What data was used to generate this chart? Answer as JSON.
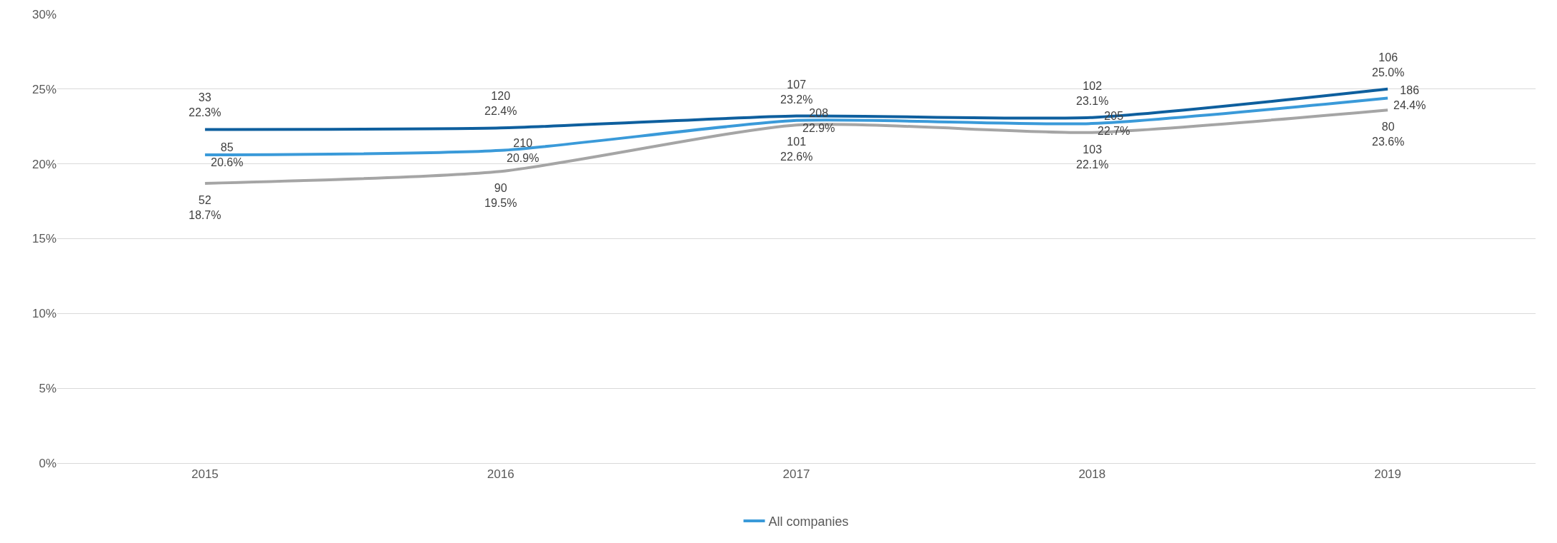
{
  "chart_data": {
    "type": "line",
    "categories": [
      "2015",
      "2016",
      "2017",
      "2018",
      "2019"
    ],
    "series": [
      {
        "name": "All companies",
        "color": "#3a9ad9",
        "values": [
          20.6,
          20.9,
          22.9,
          22.7,
          24.4
        ],
        "value_labels": [
          "85\n20.6%",
          "210\n20.9%",
          "208\n22.9%",
          "205\n22.7%",
          "186\n24.4%"
        ]
      },
      {
        "color": "#0e5f9e",
        "values": [
          22.3,
          22.4,
          23.2,
          23.1,
          25.0
        ],
        "value_labels": [
          "33\n22.3%",
          "120\n22.4%",
          "107\n23.2%",
          "102\n23.1%",
          "106\n25.0%"
        ]
      },
      {
        "color": "#a5a5a5",
        "values": [
          18.7,
          19.5,
          22.6,
          22.1,
          23.6
        ],
        "value_labels": [
          "52\n18.7%",
          "90\n19.5%",
          "101\n22.6%",
          "103\n22.1%",
          "80\n23.6%"
        ]
      }
    ],
    "ylim": [
      0,
      30
    ],
    "yticks": [
      {
        "value": 0,
        "label": "0%"
      },
      {
        "value": 5,
        "label": "5%"
      },
      {
        "value": 10,
        "label": "10%"
      },
      {
        "value": 15,
        "label": "15%"
      },
      {
        "value": 20,
        "label": "20%"
      },
      {
        "value": 25,
        "label": "25%"
      },
      {
        "value": 30,
        "label": "30%"
      }
    ],
    "grid": "y",
    "legend": "bottom",
    "marker": "none",
    "line_style": "solid"
  }
}
